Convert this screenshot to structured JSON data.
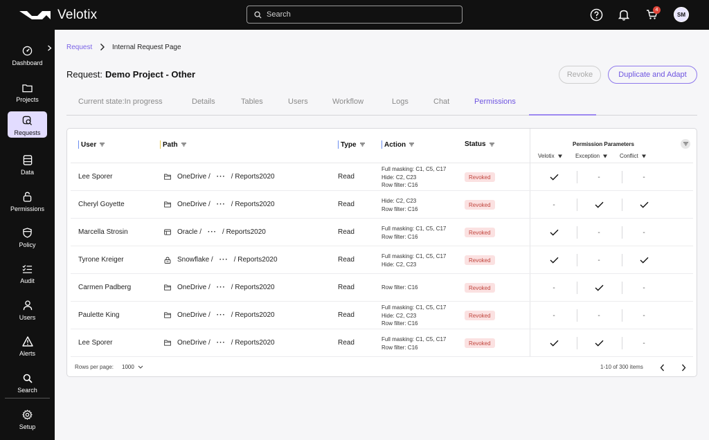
{
  "app": {
    "name": "Velotix"
  },
  "search": {
    "placeholder": "Search"
  },
  "header": {
    "cart_count": "4",
    "avatar_initials": "SM",
    "icons": [
      "help-icon",
      "bell-icon",
      "cart-icon"
    ]
  },
  "sidebar": {
    "items": [
      {
        "label": "Dashboard",
        "icon": "dashboard-icon"
      },
      {
        "label": "Projects",
        "icon": "folder-icon"
      },
      {
        "label": "Requests",
        "icon": "requests-icon",
        "active": true
      },
      {
        "label": "Data",
        "icon": "database-icon"
      },
      {
        "label": "Permissions",
        "icon": "lock-icon"
      },
      {
        "label": "Policy",
        "icon": "shield-icon"
      },
      {
        "label": "Audit",
        "icon": "checklist-icon"
      },
      {
        "label": "Users",
        "icon": "user-icon"
      },
      {
        "label": "Alerts",
        "icon": "alert-icon"
      },
      {
        "label": "Search",
        "icon": "search-icon"
      },
      {
        "label": "Setup",
        "icon": "gear-icon"
      }
    ]
  },
  "breadcrumb": {
    "parent": "Request",
    "current": "Internal Request Page"
  },
  "request": {
    "label": "Request:",
    "name": "Demo Project - Other"
  },
  "actions": {
    "revoke": "Revoke",
    "duplicate": "Duplicate and Adapt"
  },
  "tabs": [
    {
      "label": "Current state:In progress"
    },
    {
      "label": "Details"
    },
    {
      "label": "Tables"
    },
    {
      "label": "Users"
    },
    {
      "label": "Workflow"
    },
    {
      "label": "Logs"
    },
    {
      "label": "Chat"
    },
    {
      "label": "Permissions",
      "active": true
    }
  ],
  "table": {
    "columns": {
      "user": "User",
      "path": "Path",
      "type": "Type",
      "action": "Action",
      "status": "Status"
    },
    "permission_parameters": {
      "title": "Permission Parameters",
      "velotix": "Velotix",
      "exception": "Exception",
      "conflict": "Conflict"
    },
    "rows": [
      {
        "user": "Lee Sporer",
        "source": "OneDrive /",
        "source_icon": "folder-icon",
        "target": "/ Reports2020",
        "type": "Read",
        "action": [
          "Full masking: C1, C5, C17",
          "Hide: C2, C23",
          "Row filter: C16"
        ],
        "status": "Revoked",
        "velotix": true,
        "exception": false,
        "conflict": false
      },
      {
        "user": "Cheryl Goyette",
        "source": "OneDrive /",
        "source_icon": "folder-icon",
        "target": "/ Reports2020",
        "type": "Read",
        "action": [
          "Hide: C2, C23",
          "Row filter: C16"
        ],
        "status": "Revoked",
        "velotix": false,
        "exception": true,
        "conflict": true
      },
      {
        "user": "Marcella Strosin",
        "source": "Oracle /",
        "source_icon": "table-icon",
        "target": "/ Reports2020",
        "type": "Read",
        "action": [
          "Full masking: C1, C5, C17",
          "Row filter: C16"
        ],
        "status": "Revoked",
        "velotix": true,
        "exception": false,
        "conflict": false
      },
      {
        "user": "Tyrone Kreiger",
        "source": "Snowflake /",
        "source_icon": "snowflake-icon",
        "target": "/ Reports2020",
        "type": "Read",
        "action": [
          "Full masking: C1, C5, C17",
          "Hide: C2, C23"
        ],
        "status": "Revoked",
        "velotix": true,
        "exception": false,
        "conflict": true
      },
      {
        "user": "Carmen Padberg",
        "source": "OneDrive /",
        "source_icon": "folder-icon",
        "target": "/ Reports2020",
        "type": "Read",
        "action": [
          "Row filter: C16"
        ],
        "status": "Revoked",
        "velotix": false,
        "exception": true,
        "conflict": false
      },
      {
        "user": "Paulette King",
        "source": "OneDrive /",
        "source_icon": "folder-icon",
        "target": "/ Reports2020",
        "type": "Read",
        "action": [
          "Full masking: C1, C5, C17",
          "Hide: C2, C23",
          "Row filter: C16"
        ],
        "status": "Revoked",
        "velotix": false,
        "exception": false,
        "conflict": false
      },
      {
        "user": "Lee Sporer",
        "source": "OneDrive /",
        "source_icon": "folder-icon",
        "target": "/ Reports2020",
        "type": "Read",
        "action": [
          "Full masking: C1, C5, C17",
          "Row filter: C16"
        ],
        "status": "Revoked",
        "velotix": true,
        "exception": true,
        "conflict": false
      }
    ],
    "empty_mark": "-"
  },
  "pagination": {
    "rows_per_page_label": "Rows per page:",
    "rows_per_page_value": "1000",
    "range_text": "1-10 of 300 items"
  }
}
